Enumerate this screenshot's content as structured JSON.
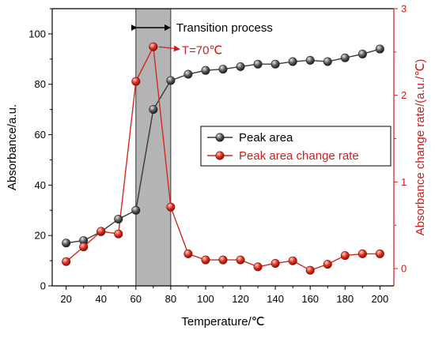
{
  "chart_data": {
    "type": "line",
    "xlabel": "Temperature/℃",
    "ylabel": "Absorbance/a.u.",
    "y2label": "Absorbance change rate/(a.u./℃)",
    "xlim": [
      12,
      208
    ],
    "ylim": [
      0,
      110
    ],
    "y2lim": [
      -0.2,
      3
    ],
    "xticks": [
      20,
      40,
      60,
      80,
      100,
      120,
      140,
      160,
      180,
      200
    ],
    "yticks": [
      0,
      20,
      40,
      60,
      80,
      100
    ],
    "y2ticks": [
      0,
      1,
      2,
      3
    ],
    "grid": false,
    "legend_position": "right",
    "colors": {
      "left_axis": "#000000",
      "right_axis": "#c8201e",
      "peak_area": "#3a3a3a",
      "change_rate": "#d42a1c",
      "shade": "#b4b4b4"
    },
    "x": [
      20,
      30,
      40,
      50,
      60,
      70,
      80,
      90,
      100,
      110,
      120,
      130,
      140,
      150,
      160,
      170,
      180,
      190,
      200
    ],
    "series": [
      {
        "name": "Peak area",
        "axis": "left",
        "values": [
          17,
          18,
          21.5,
          26.5,
          30,
          70,
          81.5,
          84,
          85.5,
          86,
          87,
          88,
          88,
          89,
          89.5,
          89,
          90.5,
          92,
          94
        ]
      },
      {
        "name": "Peak area change rate",
        "axis": "right",
        "values": [
          0.08,
          0.25,
          0.43,
          0.4,
          2.16,
          2.56,
          0.71,
          0.17,
          0.1,
          0.1,
          0.1,
          0.02,
          0.06,
          0.09,
          -0.02,
          0.05,
          0.15,
          0.17,
          0.17
        ]
      }
    ],
    "shaded_region": {
      "x": [
        60,
        80
      ],
      "label": "Transition process"
    },
    "annotation": {
      "text": "T=70℃",
      "x": 70,
      "y2": 2.56
    }
  }
}
